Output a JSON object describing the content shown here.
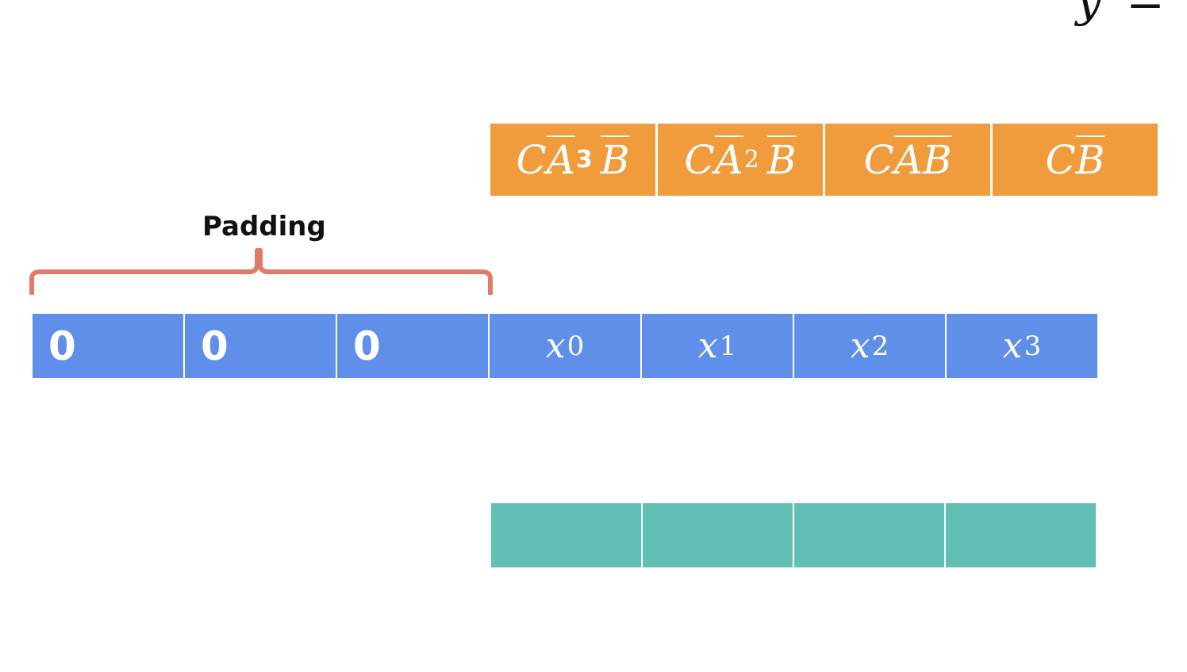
{
  "equation_partial": "y = x",
  "kernel": {
    "cells": [
      {
        "base": "CA",
        "power": "3",
        "tail": "B"
      },
      {
        "base": "CA",
        "power": "2",
        "tail": "B"
      },
      {
        "base": "CA",
        "power": "",
        "tail": "B"
      },
      {
        "base": "C",
        "power": "",
        "tail": "B"
      }
    ],
    "color": "#f09b3c"
  },
  "padding": {
    "label": "Padding",
    "brace_color": "#e07c66"
  },
  "input": {
    "color": "#5f8fe8",
    "padding_cells": [
      "0",
      "0",
      "0"
    ],
    "cells": [
      {
        "var": "x",
        "sub": "0"
      },
      {
        "var": "x",
        "sub": "1"
      },
      {
        "var": "x",
        "sub": "2"
      },
      {
        "var": "x",
        "sub": "3"
      }
    ]
  },
  "output": {
    "color": "#61c0b4",
    "cells": [
      "",
      "",
      "",
      ""
    ]
  }
}
